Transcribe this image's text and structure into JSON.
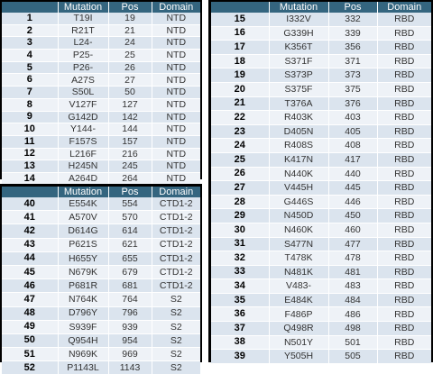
{
  "headers": {
    "num": "",
    "mutation": "Mutation",
    "pos": "Pos",
    "domain": "Domain"
  },
  "tables": [
    {
      "rows": [
        {
          "num": "1",
          "mutation": "T19I",
          "pos": "19",
          "domain": "NTD"
        },
        {
          "num": "2",
          "mutation": "R21T",
          "pos": "21",
          "domain": "NTD"
        },
        {
          "num": "3",
          "mutation": "L24-",
          "pos": "24",
          "domain": "NTD"
        },
        {
          "num": "4",
          "mutation": "P25-",
          "pos": "25",
          "domain": "NTD"
        },
        {
          "num": "5",
          "mutation": "P26-",
          "pos": "26",
          "domain": "NTD"
        },
        {
          "num": "6",
          "mutation": "A27S",
          "pos": "27",
          "domain": "NTD"
        },
        {
          "num": "7",
          "mutation": "S50L",
          "pos": "50",
          "domain": "NTD"
        },
        {
          "num": "8",
          "mutation": "V127F",
          "pos": "127",
          "domain": "NTD"
        },
        {
          "num": "9",
          "mutation": "G142D",
          "pos": "142",
          "domain": "NTD"
        },
        {
          "num": "10",
          "mutation": "Y144-",
          "pos": "144",
          "domain": "NTD"
        },
        {
          "num": "11",
          "mutation": "F157S",
          "pos": "157",
          "domain": "NTD"
        },
        {
          "num": "12",
          "mutation": "L216F",
          "pos": "216",
          "domain": "NTD"
        },
        {
          "num": "13",
          "mutation": "H245N",
          "pos": "245",
          "domain": "NTD"
        },
        {
          "num": "14",
          "mutation": "A264D",
          "pos": "264",
          "domain": "NTD"
        }
      ]
    },
    {
      "rows": [
        {
          "num": "40",
          "mutation": "E554K",
          "pos": "554",
          "domain": "CTD1-2"
        },
        {
          "num": "41",
          "mutation": "A570V",
          "pos": "570",
          "domain": "CTD1-2"
        },
        {
          "num": "42",
          "mutation": "D614G",
          "pos": "614",
          "domain": "CTD1-2"
        },
        {
          "num": "43",
          "mutation": "P621S",
          "pos": "621",
          "domain": "CTD1-2"
        },
        {
          "num": "44",
          "mutation": "H655Y",
          "pos": "655",
          "domain": "CTD1-2"
        },
        {
          "num": "45",
          "mutation": "N679K",
          "pos": "679",
          "domain": "CTD1-2"
        },
        {
          "num": "46",
          "mutation": "P681R",
          "pos": "681",
          "domain": "CTD1-2"
        },
        {
          "num": "47",
          "mutation": "N764K",
          "pos": "764",
          "domain": "S2"
        },
        {
          "num": "48",
          "mutation": "D796Y",
          "pos": "796",
          "domain": "S2"
        },
        {
          "num": "49",
          "mutation": "S939F",
          "pos": "939",
          "domain": "S2"
        },
        {
          "num": "50",
          "mutation": "Q954H",
          "pos": "954",
          "domain": "S2"
        },
        {
          "num": "51",
          "mutation": "N969K",
          "pos": "969",
          "domain": "S2"
        },
        {
          "num": "52",
          "mutation": "P1143L",
          "pos": "1143",
          "domain": "S2"
        }
      ]
    },
    {
      "rows": [
        {
          "num": "15",
          "mutation": "I332V",
          "pos": "332",
          "domain": "RBD"
        },
        {
          "num": "16",
          "mutation": "G339H",
          "pos": "339",
          "domain": "RBD"
        },
        {
          "num": "17",
          "mutation": "K356T",
          "pos": "356",
          "domain": "RBD"
        },
        {
          "num": "18",
          "mutation": "S371F",
          "pos": "371",
          "domain": "RBD"
        },
        {
          "num": "19",
          "mutation": "S373P",
          "pos": "373",
          "domain": "RBD"
        },
        {
          "num": "20",
          "mutation": "S375F",
          "pos": "375",
          "domain": "RBD"
        },
        {
          "num": "21",
          "mutation": "T376A",
          "pos": "376",
          "domain": "RBD"
        },
        {
          "num": "22",
          "mutation": "R403K",
          "pos": "403",
          "domain": "RBD"
        },
        {
          "num": "23",
          "mutation": "D405N",
          "pos": "405",
          "domain": "RBD"
        },
        {
          "num": "24",
          "mutation": "R408S",
          "pos": "408",
          "domain": "RBD"
        },
        {
          "num": "25",
          "mutation": "K417N",
          "pos": "417",
          "domain": "RBD"
        },
        {
          "num": "26",
          "mutation": "N440K",
          "pos": "440",
          "domain": "RBD"
        },
        {
          "num": "27",
          "mutation": "V445H",
          "pos": "445",
          "domain": "RBD"
        },
        {
          "num": "28",
          "mutation": "G446S",
          "pos": "446",
          "domain": "RBD"
        },
        {
          "num": "29",
          "mutation": "N450D",
          "pos": "450",
          "domain": "RBD"
        },
        {
          "num": "30",
          "mutation": "N460K",
          "pos": "460",
          "domain": "RBD"
        },
        {
          "num": "31",
          "mutation": "S477N",
          "pos": "477",
          "domain": "RBD"
        },
        {
          "num": "32",
          "mutation": "T478K",
          "pos": "478",
          "domain": "RBD"
        },
        {
          "num": "33",
          "mutation": "N481K",
          "pos": "481",
          "domain": "RBD"
        },
        {
          "num": "34",
          "mutation": "V483-",
          "pos": "483",
          "domain": "RBD"
        },
        {
          "num": "35",
          "mutation": "E484K",
          "pos": "484",
          "domain": "RBD"
        },
        {
          "num": "36",
          "mutation": "F486P",
          "pos": "486",
          "domain": "RBD"
        },
        {
          "num": "37",
          "mutation": "Q498R",
          "pos": "498",
          "domain": "RBD"
        },
        {
          "num": "38",
          "mutation": "N501Y",
          "pos": "501",
          "domain": "RBD"
        },
        {
          "num": "39",
          "mutation": "Y505H",
          "pos": "505",
          "domain": "RBD"
        }
      ]
    }
  ],
  "colors": {
    "header": "#34657f",
    "row_odd": "#dbe4ee",
    "row_even": "#eef2f7",
    "frame": "#000000"
  }
}
